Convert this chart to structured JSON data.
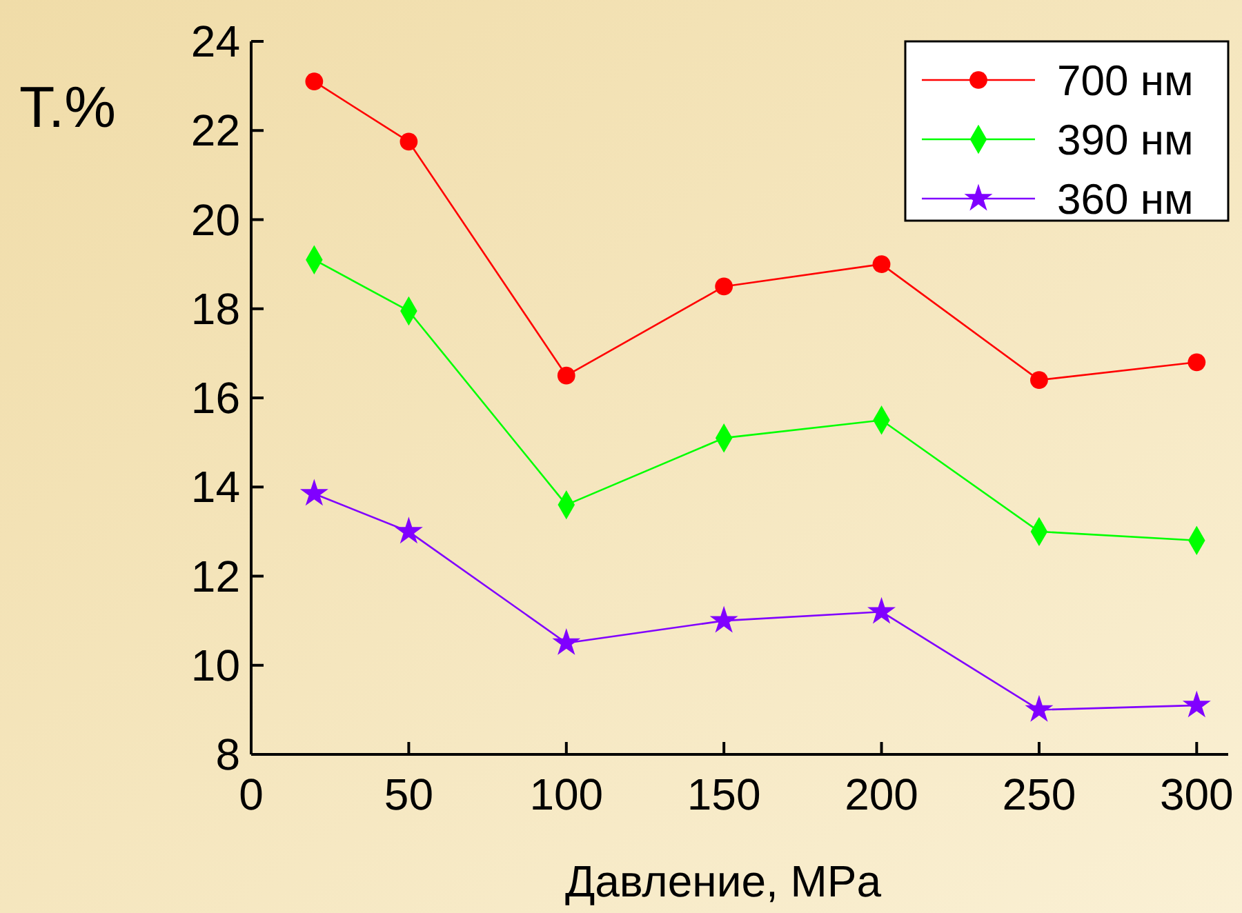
{
  "chart_data": {
    "type": "line",
    "xlabel": "Давление, MPa",
    "ylabel": "T.%",
    "x": [
      20,
      50,
      100,
      150,
      200,
      250,
      300
    ],
    "series": [
      {
        "name": "700 нм",
        "color": "#ff0000",
        "marker": "circle",
        "values": [
          23.1,
          21.75,
          16.5,
          18.5,
          19.0,
          16.4,
          16.8
        ]
      },
      {
        "name": "390 нм",
        "color": "#00ff00",
        "marker": "diamond",
        "values": [
          19.1,
          17.95,
          13.6,
          15.1,
          15.5,
          13.0,
          12.8
        ]
      },
      {
        "name": "360 нм",
        "color": "#8000ff",
        "marker": "star",
        "values": [
          13.85,
          13.0,
          10.5,
          11.0,
          11.2,
          9.0,
          9.1
        ]
      }
    ],
    "xlim": [
      0,
      310
    ],
    "xticks": [
      0,
      50,
      100,
      150,
      200,
      250,
      300
    ],
    "ylim": [
      8,
      24
    ],
    "yticks": [
      8,
      10,
      12,
      14,
      16,
      18,
      20,
      22,
      24
    ],
    "legend": "top right",
    "grid": false
  }
}
